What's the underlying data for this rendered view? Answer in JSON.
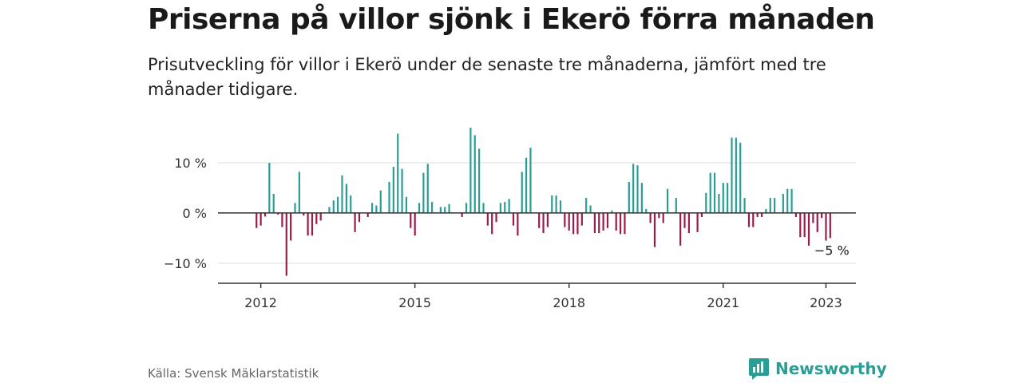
{
  "title": "Priserna på villor sjönk i Ekerö förra månaden",
  "subtitle": "Prisutveckling för villor i Ekerö under de senaste tre månaderna, jämfört med tre månader tidigare.",
  "source": "Källa: Svensk Mäklarstatistik",
  "brand": {
    "name": "Newsworthy",
    "icon": "newsworthy-logo-icon"
  },
  "colors": {
    "positive": "#2a9d94",
    "negative": "#9b1b4a",
    "grid": "#dddddd",
    "axis": "#333333"
  },
  "chart_data": {
    "type": "bar",
    "x_start": "2011-12",
    "x_end": "2023-02",
    "ylim": [
      -14,
      17
    ],
    "xlim": [
      "2011-03",
      "2023-08"
    ],
    "y_ticks": [
      {
        "value": 10,
        "label": "10 %"
      },
      {
        "value": 0,
        "label": "0 %"
      },
      {
        "value": -10,
        "label": "−10 %"
      }
    ],
    "x_ticks": [
      {
        "date": "2012-01",
        "label": "2012"
      },
      {
        "date": "2015-01",
        "label": "2015"
      },
      {
        "date": "2018-01",
        "label": "2018"
      },
      {
        "date": "2021-01",
        "label": "2021"
      },
      {
        "date": "2023-01",
        "label": "2023"
      }
    ],
    "grid": true,
    "values": [
      -3,
      -2.5,
      -0.7,
      10,
      3.8,
      -0.3,
      -2.8,
      -12.5,
      -5.5,
      2,
      8.2,
      -0.5,
      -4.5,
      -4.5,
      -2.2,
      -1.5,
      0,
      1.2,
      2.5,
      3.2,
      7.5,
      5.8,
      3.5,
      -3.8,
      -1.8,
      0,
      -0.8,
      2,
      1.5,
      4.5,
      0,
      6.2,
      9.2,
      15.8,
      8.8,
      3.2,
      -3,
      -4.5,
      2,
      8,
      9.8,
      2.2,
      0,
      1.2,
      1.2,
      1.8,
      0,
      0,
      -0.8,
      2,
      17,
      15.5,
      12.8,
      2,
      -2.5,
      -4.2,
      -1.8,
      2,
      2.2,
      2.8,
      -2.5,
      -4.5,
      8.2,
      11,
      13,
      0,
      -3,
      -4,
      -2.8,
      3.5,
      3.5,
      2.5,
      -2.8,
      -3.5,
      -4.2,
      -4.2,
      -2.5,
      3,
      1.5,
      -4,
      -4,
      -3.5,
      -3,
      0.5,
      -3.5,
      -4.2,
      -4.2,
      6.2,
      9.8,
      9.5,
      6,
      0.8,
      -2,
      -6.8,
      -1,
      -2,
      4.8,
      0,
      3,
      -6.5,
      -3,
      -4,
      0,
      -3.8,
      -0.8,
      4,
      8,
      8,
      3.8,
      6,
      6,
      15,
      15,
      14,
      3,
      -2.8,
      -2.8,
      -0.8,
      -0.8,
      0.8,
      3,
      3,
      0,
      3.8,
      4.8,
      4.8,
      -0.8,
      -4.8,
      -4.8,
      -6.5,
      -2,
      -3.8,
      -1,
      -5.5,
      -5
    ],
    "annotation": {
      "label": "−5 %"
    }
  }
}
